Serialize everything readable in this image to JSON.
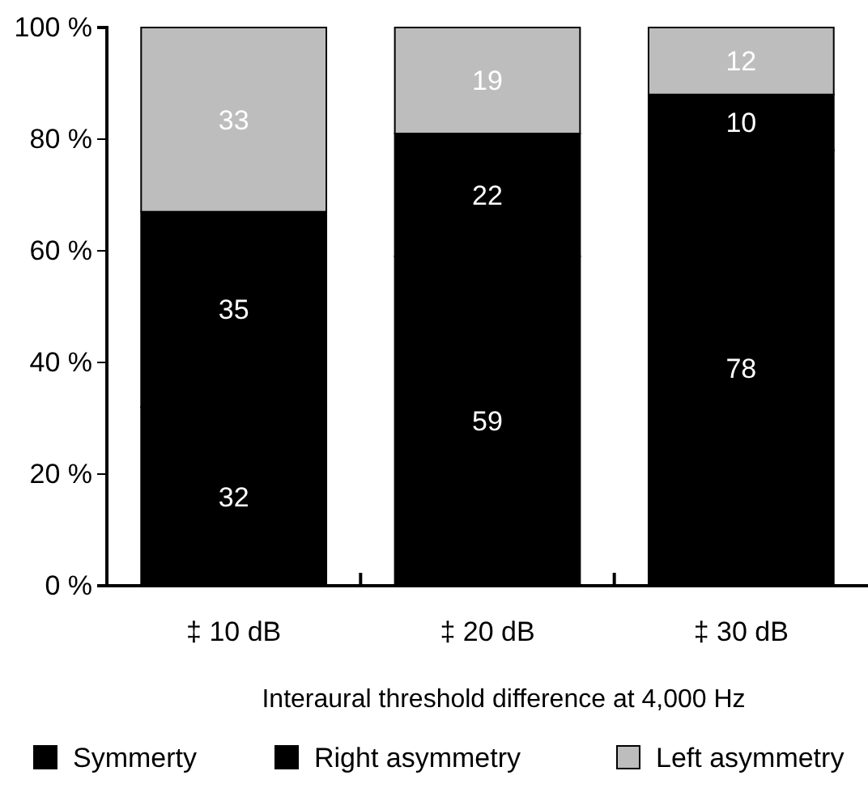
{
  "chart_data": {
    "type": "bar",
    "stacked": true,
    "xlabel": "Interaural threshold difference at 4,000 Hz",
    "categories": [
      "‡ 10 dB",
      "‡ 20 dB",
      "‡ 30 dB"
    ],
    "series": [
      {
        "name": "Symmerty",
        "color": "#000000",
        "values": [
          32,
          59,
          78
        ]
      },
      {
        "name": "Right asymmetry",
        "color": "#000000",
        "values": [
          35,
          22,
          10
        ]
      },
      {
        "name": "Left asymmetry",
        "color": "#bdbdbd",
        "values": [
          33,
          19,
          12
        ]
      }
    ],
    "ylim": [
      0,
      100
    ],
    "yticks": [
      {
        "value": 0,
        "label": "0 %"
      },
      {
        "value": 20,
        "label": "20 %"
      },
      {
        "value": 40,
        "label": "40 %"
      },
      {
        "value": 60,
        "label": "60 %"
      },
      {
        "value": 80,
        "label": "80 %"
      },
      {
        "value": 100,
        "label": "100 %"
      }
    ],
    "data_labels": true,
    "legend": "bottom",
    "grid": false
  }
}
